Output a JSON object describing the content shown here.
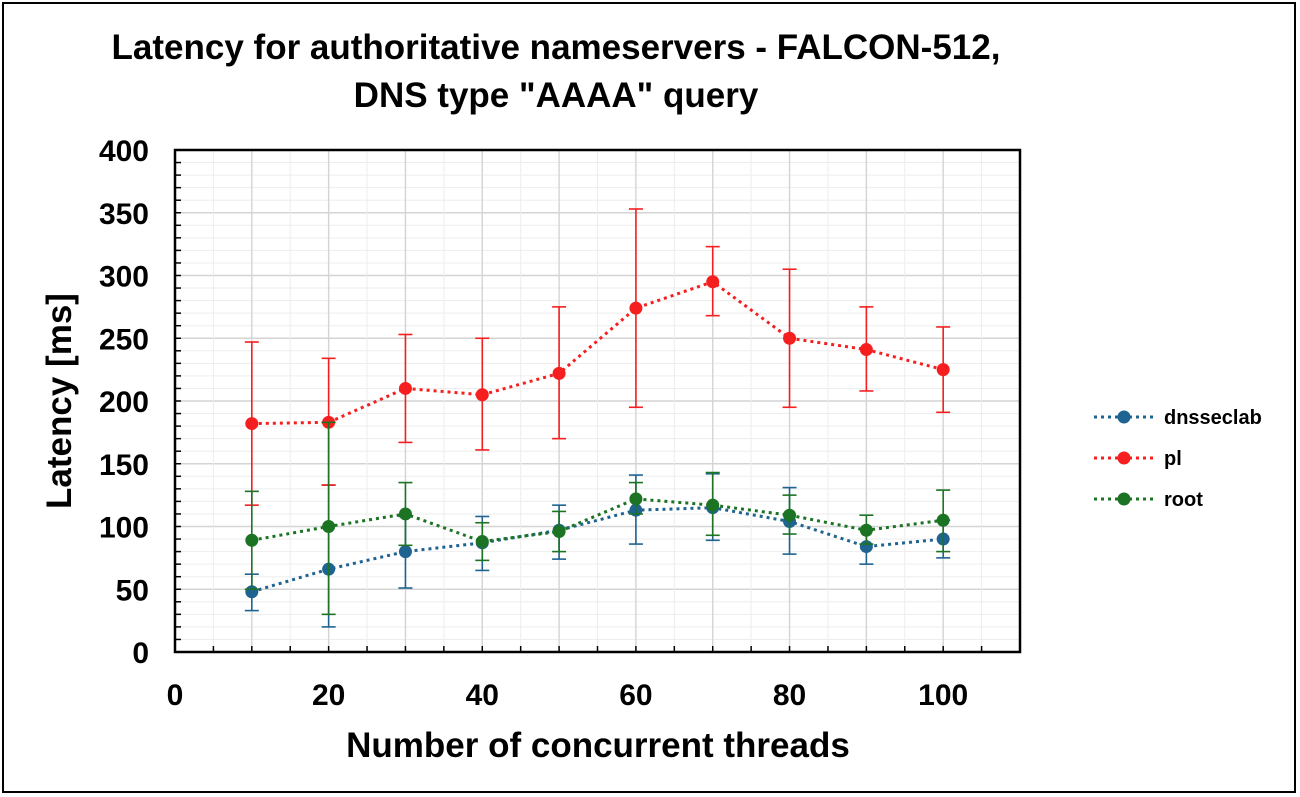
{
  "chart_data": {
    "type": "line",
    "title_line1": "Latency for authoritative nameservers - FALCON-512,",
    "title_line2": "DNS type \"AAAA\" query",
    "xlabel": "Number of concurrent threads",
    "ylabel": "Latency [ms]",
    "xlim": [
      0,
      110
    ],
    "ylim": [
      0,
      400
    ],
    "xticks": [
      0,
      20,
      40,
      60,
      80,
      100
    ],
    "yticks": [
      0,
      50,
      100,
      150,
      200,
      250,
      300,
      350,
      400
    ],
    "grid": true,
    "legend_position": "right",
    "x": [
      10,
      20,
      30,
      40,
      50,
      60,
      70,
      80,
      90,
      100
    ],
    "series": [
      {
        "name": "dnsseclab",
        "color": "#1f6391",
        "values": [
          48,
          66,
          80,
          87,
          97,
          113,
          115,
          104,
          84,
          90
        ],
        "err_low": [
          33,
          20,
          51,
          65,
          74,
          86,
          89,
          78,
          70,
          75
        ],
        "err_high": [
          62,
          133,
          108,
          108,
          117,
          141,
          142,
          131,
          98,
          105
        ]
      },
      {
        "name": "pl",
        "color": "#f51f1f",
        "values": [
          182,
          183,
          210,
          205,
          222,
          274,
          295,
          250,
          241,
          225
        ],
        "err_low": [
          117,
          133,
          167,
          161,
          170,
          195,
          268,
          195,
          208,
          191
        ],
        "err_high": [
          247,
          234,
          253,
          250,
          275,
          353,
          323,
          305,
          275,
          259
        ]
      },
      {
        "name": "root",
        "color": "#1c7324",
        "values": [
          89,
          100,
          110,
          88,
          96,
          122,
          117,
          109,
          97,
          105
        ],
        "err_low": [
          50,
          30,
          85,
          73,
          80,
          110,
          93,
          94,
          86,
          80
        ],
        "err_high": [
          128,
          183,
          135,
          103,
          112,
          135,
          143,
          125,
          109,
          129
        ]
      }
    ]
  }
}
